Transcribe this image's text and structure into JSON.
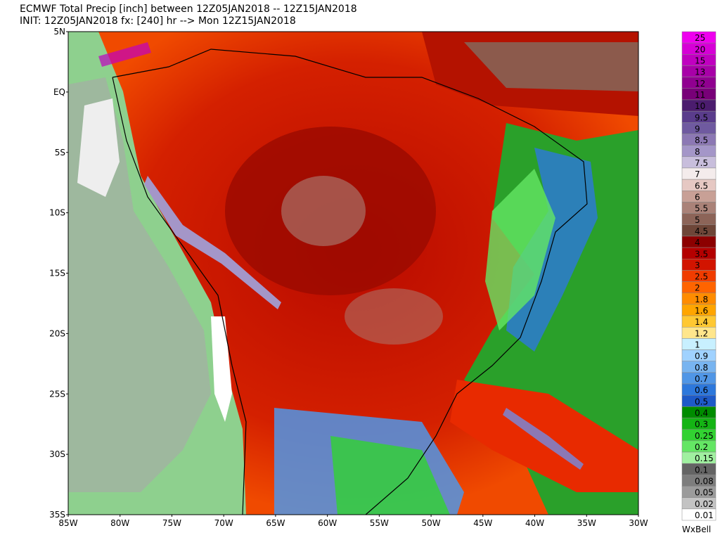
{
  "header": {
    "title": "ECMWF Total Precip [inch] between 12Z05JAN2018 -- 12Z15JAN2018",
    "subtitle": "INIT: 12Z05JAN2018 fx: [240] hr --> Mon 12Z15JAN2018"
  },
  "map": {
    "lat_labels": [
      "5N",
      "EQ",
      "5S",
      "10S",
      "15S",
      "20S",
      "25S",
      "30S",
      "35S"
    ],
    "lon_labels": [
      "85W",
      "80W",
      "75W",
      "70W",
      "65W",
      "60W",
      "55W",
      "50W",
      "45W",
      "40W",
      "35W",
      "30W"
    ]
  },
  "colorbar": [
    {
      "label": "25",
      "color": "#ee00ee"
    },
    {
      "label": "20",
      "color": "#d600d6"
    },
    {
      "label": "15",
      "color": "#c000c0"
    },
    {
      "label": "13",
      "color": "#a800a8"
    },
    {
      "label": "12",
      "color": "#900090"
    },
    {
      "label": "11",
      "color": "#780078"
    },
    {
      "label": "10",
      "color": "#4b1c6e"
    },
    {
      "label": "9.5",
      "color": "#5a3c8c"
    },
    {
      "label": "9",
      "color": "#6f5aa0"
    },
    {
      "label": "8.5",
      "color": "#8c78b4"
    },
    {
      "label": "8",
      "color": "#a496c8"
    },
    {
      "label": "7.5",
      "color": "#c8bedc"
    },
    {
      "label": "7",
      "color": "#f4ecec"
    },
    {
      "label": "6.5",
      "color": "#e6c8c3"
    },
    {
      "label": "6",
      "color": "#c8a096"
    },
    {
      "label": "5.5",
      "color": "#aa8278"
    },
    {
      "label": "5",
      "color": "#8c6458"
    },
    {
      "label": "4.5",
      "color": "#6e4638"
    },
    {
      "label": "4",
      "color": "#8c0000"
    },
    {
      "label": "3.5",
      "color": "#b40000"
    },
    {
      "label": "3",
      "color": "#d21400"
    },
    {
      "label": "2.5",
      "color": "#f03c00"
    },
    {
      "label": "2",
      "color": "#ff6400"
    },
    {
      "label": "1.8",
      "color": "#ff8c00"
    },
    {
      "label": "1.6",
      "color": "#ffa500"
    },
    {
      "label": "1.4",
      "color": "#ffc832"
    },
    {
      "label": "1.2",
      "color": "#ffe68c"
    },
    {
      "label": "1",
      "color": "#c8f0ff"
    },
    {
      "label": "0.9",
      "color": "#a0d2ff"
    },
    {
      "label": "0.8",
      "color": "#78b4f0"
    },
    {
      "label": "0.7",
      "color": "#5096e6"
    },
    {
      "label": "0.6",
      "color": "#2d78dc"
    },
    {
      "label": "0.5",
      "color": "#1e5ac8"
    },
    {
      "label": "0.4",
      "color": "#008c00"
    },
    {
      "label": "0.3",
      "color": "#14b414"
    },
    {
      "label": "0.25",
      "color": "#32d232"
    },
    {
      "label": "0.2",
      "color": "#64e664"
    },
    {
      "label": "0.15",
      "color": "#a0f0a0"
    },
    {
      "label": "0.1",
      "color": "#646464"
    },
    {
      "label": "0.08",
      "color": "#7d7d7d"
    },
    {
      "label": "0.05",
      "color": "#9b9b9b"
    },
    {
      "label": "0.02",
      "color": "#c3c3c3"
    },
    {
      "label": "0.01",
      "color": "#ffffff"
    }
  ],
  "logo": "WxBell"
}
